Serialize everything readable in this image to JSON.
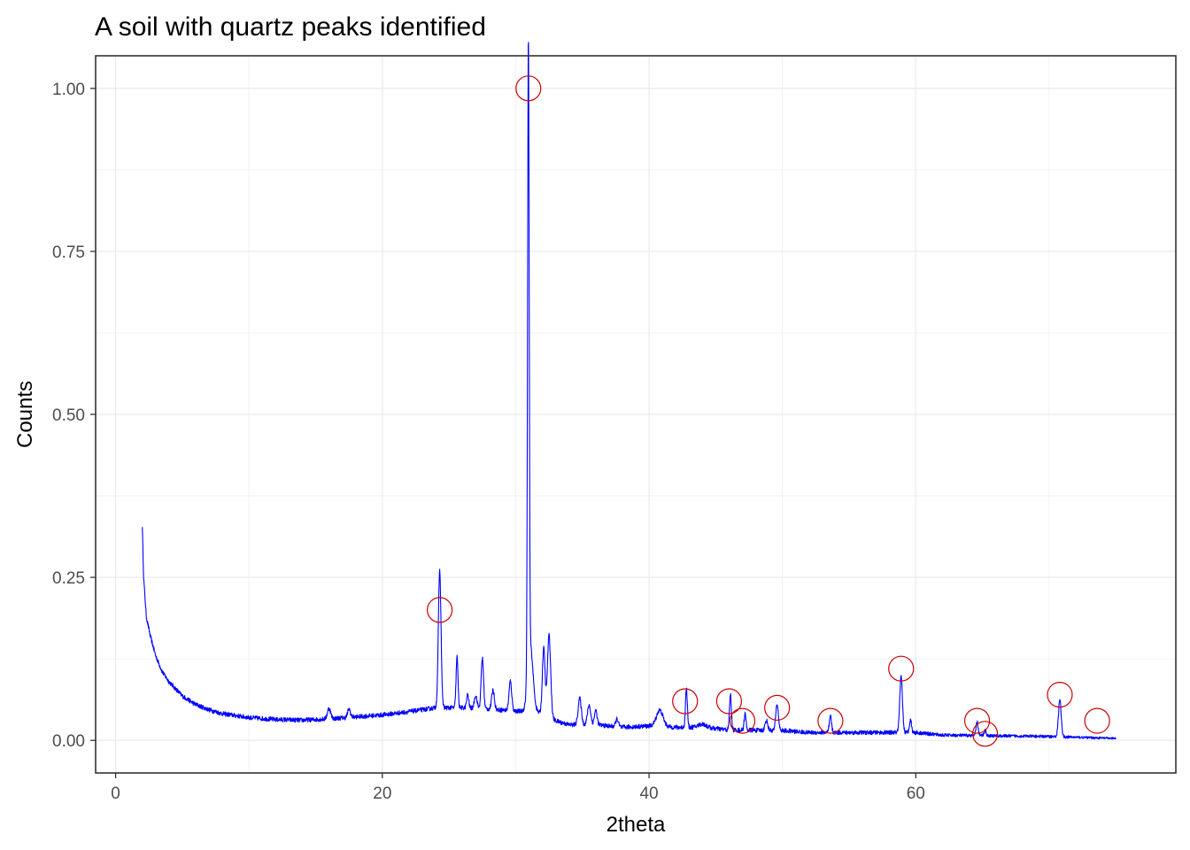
{
  "chart_data": {
    "type": "line",
    "title": "A soil with quartz peaks identified",
    "xlabel": "2theta",
    "ylabel": "Counts",
    "xlim": [
      -1.5,
      79.5
    ],
    "ylim": [
      -0.05,
      1.05
    ],
    "x_ticks": [
      0,
      20,
      40,
      60
    ],
    "x_tick_labels": [
      "0",
      "20",
      "40",
      "60"
    ],
    "y_ticks": [
      0,
      0.25,
      0.5,
      0.75,
      1.0
    ],
    "y_tick_labels": [
      "0.00",
      "0.25",
      "0.50",
      "0.75",
      "1.00"
    ],
    "x_minor": [
      10,
      30,
      50,
      70
    ],
    "y_minor": [
      0.125,
      0.375,
      0.625,
      0.875
    ],
    "grid": true,
    "legend": "none",
    "series": [
      {
        "line_color": "#0000ff",
        "x_range": [
          2.0,
          75.0
        ],
        "baseline": [
          [
            2.0,
            0.33
          ],
          [
            2.1,
            0.25
          ],
          [
            2.3,
            0.19
          ],
          [
            2.6,
            0.16
          ],
          [
            3.0,
            0.13
          ],
          [
            3.5,
            0.105
          ],
          [
            4.0,
            0.09
          ],
          [
            5.0,
            0.068
          ],
          [
            6.0,
            0.055
          ],
          [
            7.0,
            0.047
          ],
          [
            8.0,
            0.041
          ],
          [
            10.0,
            0.035
          ],
          [
            12.0,
            0.032
          ],
          [
            14.0,
            0.031
          ],
          [
            16.0,
            0.033
          ],
          [
            18.0,
            0.036
          ],
          [
            20.0,
            0.039
          ],
          [
            22.0,
            0.044
          ],
          [
            24.0,
            0.05
          ],
          [
            26.0,
            0.05
          ],
          [
            28.0,
            0.048
          ],
          [
            30.0,
            0.045
          ],
          [
            32.0,
            0.042
          ],
          [
            33.0,
            0.03
          ],
          [
            34.0,
            0.024
          ],
          [
            36.0,
            0.024
          ],
          [
            38.0,
            0.02
          ],
          [
            40.0,
            0.022
          ],
          [
            42.0,
            0.02
          ],
          [
            44.0,
            0.02
          ],
          [
            46.0,
            0.016
          ],
          [
            50.0,
            0.015
          ],
          [
            52.0,
            0.012
          ],
          [
            56.0,
            0.012
          ],
          [
            60.0,
            0.012
          ],
          [
            62.0,
            0.008
          ],
          [
            66.0,
            0.007
          ],
          [
            70.0,
            0.006
          ],
          [
            75.0,
            0.003
          ]
        ],
        "peaks": [
          [
            16.0,
            0.016,
            0.12
          ],
          [
            17.5,
            0.013,
            0.1
          ],
          [
            24.3,
            0.21,
            0.1
          ],
          [
            25.6,
            0.078,
            0.07
          ],
          [
            26.4,
            0.02,
            0.08
          ],
          [
            27.0,
            0.02,
            0.1
          ],
          [
            27.5,
            0.078,
            0.09
          ],
          [
            28.3,
            0.03,
            0.1
          ],
          [
            29.6,
            0.045,
            0.1
          ],
          [
            30.95,
            0.96,
            0.06
          ],
          [
            31.1,
            0.1,
            0.2
          ],
          [
            32.1,
            0.1,
            0.1
          ],
          [
            32.5,
            0.125,
            0.12
          ],
          [
            34.8,
            0.04,
            0.12
          ],
          [
            35.5,
            0.03,
            0.12
          ],
          [
            36.0,
            0.022,
            0.1
          ],
          [
            37.6,
            0.012,
            0.1
          ],
          [
            40.8,
            0.025,
            0.25
          ],
          [
            42.8,
            0.06,
            0.07
          ],
          [
            44.0,
            0.005,
            0.3
          ],
          [
            46.1,
            0.055,
            0.07
          ],
          [
            47.2,
            0.025,
            0.07
          ],
          [
            48.8,
            0.015,
            0.1
          ],
          [
            49.6,
            0.04,
            0.1
          ],
          [
            53.6,
            0.025,
            0.08
          ],
          [
            58.9,
            0.085,
            0.1
          ],
          [
            59.6,
            0.02,
            0.08
          ],
          [
            64.6,
            0.02,
            0.08
          ],
          [
            65.2,
            0.008,
            0.08
          ],
          [
            70.8,
            0.057,
            0.1
          ]
        ],
        "noise_amplitude": 0.0035
      }
    ],
    "markers": {
      "edge_color": "#cc0000",
      "shape": "open-circle",
      "points": [
        {
          "x": 24.3,
          "y": 0.2
        },
        {
          "x": 30.95,
          "y": 1.0
        },
        {
          "x": 42.7,
          "y": 0.06
        },
        {
          "x": 46.0,
          "y": 0.06
        },
        {
          "x": 47.0,
          "y": 0.03
        },
        {
          "x": 49.6,
          "y": 0.05
        },
        {
          "x": 53.6,
          "y": 0.03
        },
        {
          "x": 58.9,
          "y": 0.11
        },
        {
          "x": 64.6,
          "y": 0.03
        },
        {
          "x": 65.2,
          "y": 0.01
        },
        {
          "x": 70.8,
          "y": 0.07
        },
        {
          "x": 73.6,
          "y": 0.03
        }
      ]
    }
  }
}
